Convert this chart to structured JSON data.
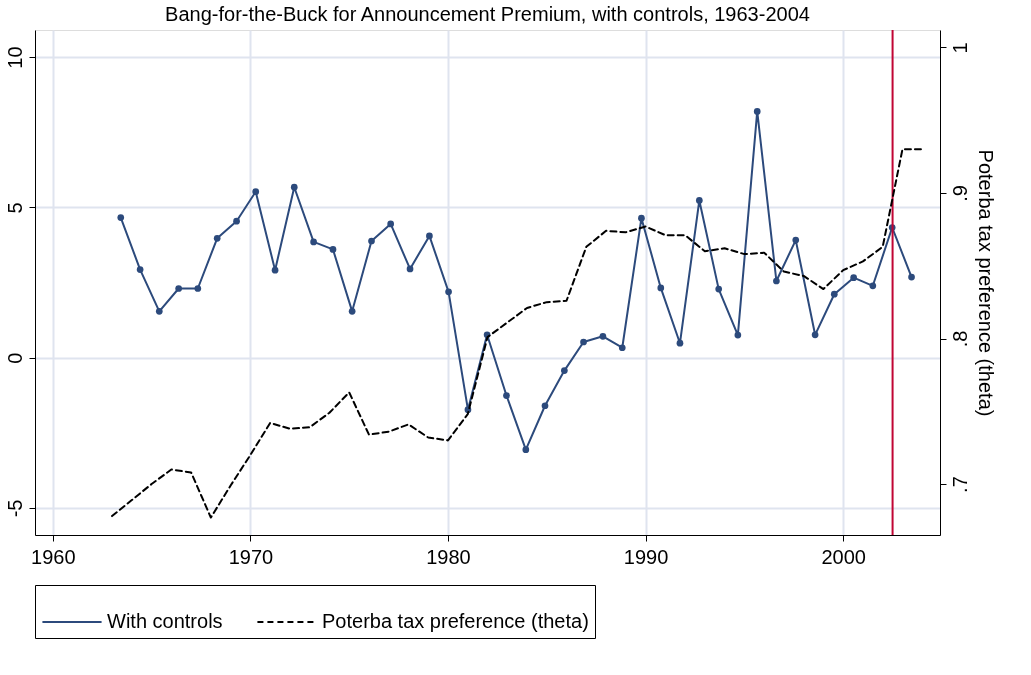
{
  "chart_data": {
    "type": "line",
    "title": "Bang-for-the-Buck for Announcement Premium, with controls, 1963-2004",
    "y2label": "Poterba tax preference (theta)",
    "xlim": [
      1959.1,
      2004.9
    ],
    "xticks": [
      1960,
      1970,
      1980,
      1990,
      2000
    ],
    "ylim": [
      -5.9,
      10.9
    ],
    "yticks": [
      -5,
      0,
      5,
      10
    ],
    "y2lim": [
      0.665,
      1.012
    ],
    "y2ticks": [
      {
        "value": 0.7,
        "label": ".7"
      },
      {
        "value": 0.8,
        "label": ".8"
      },
      {
        "value": 0.9,
        "label": ".9"
      },
      1
    ],
    "grid": true,
    "legend": "bottom",
    "ref_lines": [
      {
        "axis": "x",
        "value": 2002.5,
        "color": "#c10534"
      }
    ],
    "series": [
      {
        "name": "With controls",
        "color": "#2c4a7c",
        "marker": "circle",
        "line_style": "solid",
        "x": [
          1963.44,
          1964.42,
          1965.39,
          1966.37,
          1967.34,
          1968.32,
          1969.3,
          1970.27,
          1971.25,
          1972.22,
          1973.2,
          1974.18,
          1975.15,
          1976.13,
          1977.1,
          1978.08,
          1979.06,
          1980.03,
          1981.01,
          1981.98,
          1982.96,
          1983.94,
          1984.91,
          1985.89,
          1986.86,
          1987.84,
          1988.82,
          1989.79,
          1990.77,
          1991.74,
          1992.72,
          1993.7,
          1994.67,
          1995.65,
          1996.62,
          1997.6,
          1998.58,
          1999.55,
          2000.53,
          2001.5,
          2002.48,
          2003.46
        ],
        "values": [
          4.66,
          2.93,
          1.54,
          2.3,
          2.3,
          3.97,
          4.54,
          5.52,
          2.91,
          5.67,
          3.85,
          3.6,
          1.54,
          3.88,
          4.45,
          2.95,
          4.05,
          2.19,
          -1.73,
          0.76,
          -1.26,
          -3.06,
          -1.6,
          -0.43,
          0.52,
          0.71,
          0.33,
          4.64,
          2.32,
          0.48,
          5.23,
          2.28,
          0.75,
          8.19,
          2.55,
          3.91,
          0.76,
          2.11,
          2.66,
          2.39,
          4.33,
          2.68
        ]
      },
      {
        "name": "Poterba tax preference (theta)",
        "color": "#000000",
        "marker": "none",
        "line_style": "dashed",
        "axis": "y2",
        "x": [
          1963,
          1964,
          1965,
          1966,
          1967,
          1968,
          1969,
          1970,
          1971,
          1972,
          1973,
          1974,
          1975,
          1976,
          1977,
          1978,
          1979,
          1980,
          1981,
          1982,
          1983,
          1984,
          1985,
          1986,
          1987,
          1988,
          1989,
          1990,
          1991,
          1992,
          1993,
          1994,
          1995,
          1996,
          1997,
          1998,
          1999,
          2000,
          2001,
          2002,
          2003,
          2004
        ],
        "values": [
          0.678,
          0.689,
          0.7,
          0.71,
          0.708,
          0.677,
          0.699,
          0.72,
          0.742,
          0.738,
          0.739,
          0.749,
          0.763,
          0.734,
          0.736,
          0.741,
          0.732,
          0.73,
          0.748,
          0.801,
          0.811,
          0.821,
          0.825,
          0.826,
          0.863,
          0.874,
          0.873,
          0.877,
          0.871,
          0.871,
          0.86,
          0.862,
          0.858,
          0.859,
          0.846,
          0.843,
          0.834,
          0.847,
          0.853,
          0.863,
          0.93,
          0.93
        ]
      }
    ]
  }
}
